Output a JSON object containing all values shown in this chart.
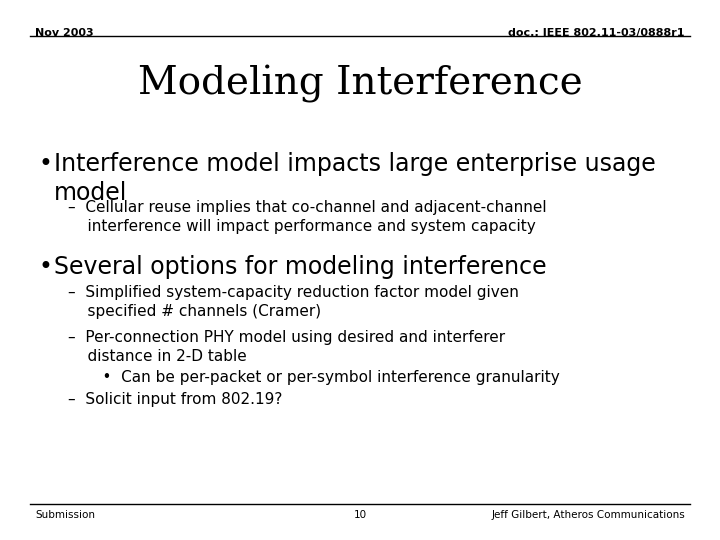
{
  "background_color": "#ffffff",
  "header_left": "Nov 2003",
  "header_right": "doc.: IEEE 802.11-03/0888r1",
  "title": "Modeling Interference",
  "footer_left": "Submission",
  "footer_center": "10",
  "footer_right": "Jeff Gilbert, Atheros Communications",
  "bullet1_bullet": "•",
  "bullet1_text": "Interference model impacts large enterprise usage\nmodel",
  "sub1": "–  Cellular reuse implies that co-channel and adjacent-channel\n    interference will impact performance and system capacity",
  "bullet2_bullet": "•",
  "bullet2_text": "Several options for modeling interference",
  "sub2a": "–  Simplified system-capacity reduction factor model given\n    specified # channels (Cramer)",
  "sub2b": "–  Per-connection PHY model using desired and interferer\n    distance in 2-D table",
  "sub2b_sub": "    •  Can be per-packet or per-symbol interference granularity",
  "sub2c": "–  Solicit input from 802.19?",
  "header_fontsize": 8,
  "title_fontsize": 28,
  "bullet_fontsize": 17,
  "sub_fontsize": 11,
  "footer_fontsize": 7.5
}
